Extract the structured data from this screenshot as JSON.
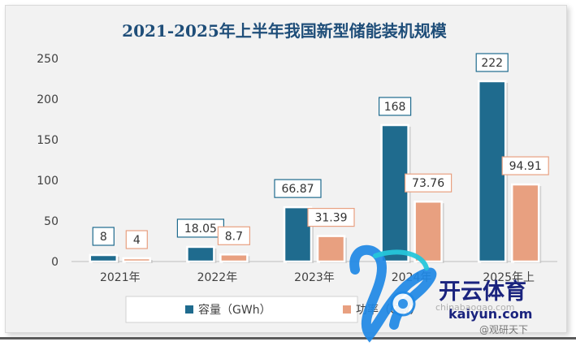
{
  "chart_data": {
    "type": "bar",
    "title": "2021-2025年上半年我国新型储能装机规模",
    "categories": [
      "2021年",
      "2022年",
      "2023年",
      "2024年",
      "2025年上"
    ],
    "series": [
      {
        "name": "容量（GWh）",
        "values": [
          8,
          18.05,
          66.87,
          168,
          222
        ],
        "labels": [
          "8",
          "18.05",
          "66.87",
          "168",
          "222"
        ],
        "color": "#1f6b8e"
      },
      {
        "name": "功率（GW）",
        "values": [
          4,
          8.7,
          31.39,
          73.76,
          94.91
        ],
        "labels": [
          "4",
          "8.7",
          "31.39",
          "73.76",
          "94.91"
        ],
        "color": "#e8a080"
      }
    ],
    "ylim": [
      0,
      250
    ],
    "yticks": [
      0,
      50,
      100,
      150,
      200,
      250
    ],
    "xlabel": "",
    "ylabel": "",
    "grid": false,
    "legend_position": "bottom"
  },
  "watermark": {
    "brand_cn": "开云体育",
    "brand_en": "kaiyun.com",
    "source_url": "chinabaogao.com",
    "weibo_handle": "@观研天下",
    "icon_name": "kaiyun-logo-icon",
    "colors": {
      "blue": "#1e88e5",
      "cyan": "#26c6da",
      "dark": "#1a237e"
    }
  }
}
